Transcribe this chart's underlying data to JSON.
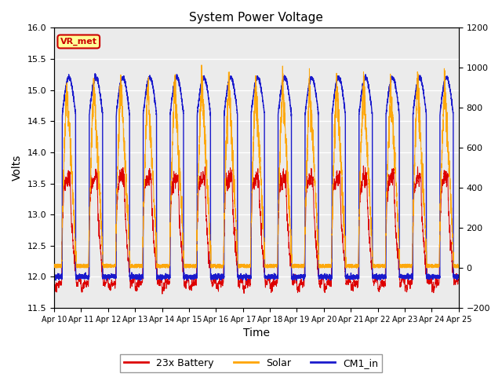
{
  "title": "System Power Voltage",
  "xlabel": "Time",
  "ylabel": "Volts",
  "ylim_left": [
    11.5,
    16.0
  ],
  "ylim_right": [
    -200,
    1200
  ],
  "yticks_left": [
    11.5,
    12.0,
    12.5,
    13.0,
    13.5,
    14.0,
    14.5,
    15.0,
    15.5,
    16.0
  ],
  "yticks_right": [
    -200,
    0,
    200,
    400,
    600,
    800,
    1000,
    1200
  ],
  "annotation_text": "VR_met",
  "annotation_color": "#cc0000",
  "annotation_bg": "#ffff99",
  "battery_color": "#dd0000",
  "solar_color": "#ffa500",
  "cm1_color": "#1a1acc",
  "legend_labels": [
    "23x Battery",
    "Solar",
    "CM1_in"
  ],
  "plot_bg": "#ebebeb"
}
